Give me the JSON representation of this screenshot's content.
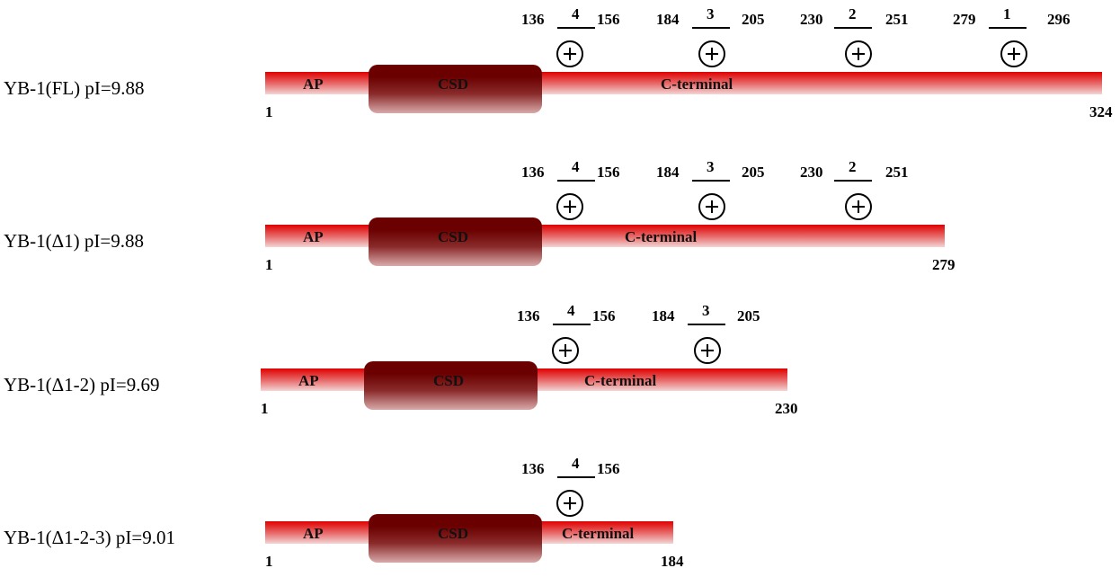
{
  "domain_labels": {
    "ap": "AP",
    "csd": "CSD",
    "cterm": "C-terminal"
  },
  "colors": {
    "bar_top": "#e00000",
    "bar_bottom": "#f4d4d4",
    "csd_top": "#6a0000"
  },
  "constructs": [
    {
      "name": "YB-1(FL) pI=9.88",
      "start": "1",
      "end": "324",
      "segments": [
        {
          "n": "4",
          "from": "136",
          "to": "156"
        },
        {
          "n": "3",
          "from": "184",
          "to": "205"
        },
        {
          "n": "2",
          "from": "230",
          "to": "251"
        },
        {
          "n": "1",
          "from": "279",
          "to": "296"
        }
      ]
    },
    {
      "name": "YB-1(Δ1) pI=9.88",
      "start": "1",
      "end": "279",
      "segments": [
        {
          "n": "4",
          "from": "136",
          "to": "156"
        },
        {
          "n": "3",
          "from": "184",
          "to": "205"
        },
        {
          "n": "2",
          "from": "230",
          "to": "251"
        }
      ]
    },
    {
      "name": "YB-1(Δ1-2) pI=9.69",
      "start": "1",
      "end": "230",
      "segments": [
        {
          "n": "4",
          "from": "136",
          "to": "156"
        },
        {
          "n": "3",
          "from": "184",
          "to": "205"
        }
      ]
    },
    {
      "name": "YB-1(Δ1-2-3) pI=9.01",
      "start": "1",
      "end": "184",
      "segments": [
        {
          "n": "4",
          "from": "136",
          "to": "156"
        }
      ]
    }
  ]
}
